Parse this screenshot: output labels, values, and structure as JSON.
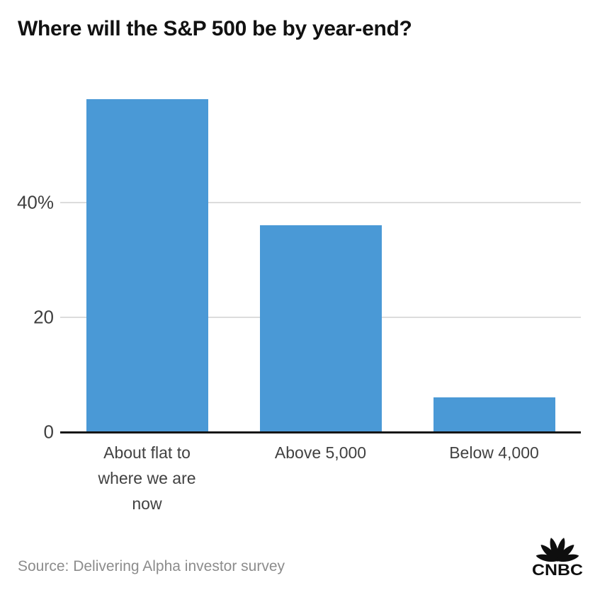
{
  "header": {
    "title": "Where will the S&P 500 be by year-end?"
  },
  "chart_data": {
    "type": "bar",
    "title": "Where will the S&P 500 be by year-end?",
    "categories": [
      "About flat to where we are now",
      "Above 5,000",
      "Below 4,000"
    ],
    "category_display_lines": [
      [
        "About flat to",
        "where we are",
        "now"
      ],
      [
        "Above 5,000"
      ],
      [
        "Below 4,000"
      ]
    ],
    "values": [
      58,
      36,
      6
    ],
    "unit": "%",
    "xlabel": "",
    "ylabel": "",
    "ylim": [
      0,
      61
    ],
    "yticks": [
      {
        "value": 40,
        "label": "40%"
      },
      {
        "value": 20,
        "label": "20"
      },
      {
        "value": 0,
        "label": "0"
      }
    ],
    "grid": "horizontal-at-yticks",
    "legend": "none",
    "bar_color": "#4a99d6"
  },
  "colors": {
    "bar": "#4a99d6",
    "gridline": "#dcdcdc",
    "axis": "#161616",
    "title": "#111111",
    "tick_label": "#3f3f3f",
    "category_label": "#414141",
    "source": "#8c8c8c",
    "logo": "#0e0e0e"
  },
  "footer": {
    "source": "Source: Delivering Alpha investor survey",
    "logo_text": "CNBC"
  }
}
